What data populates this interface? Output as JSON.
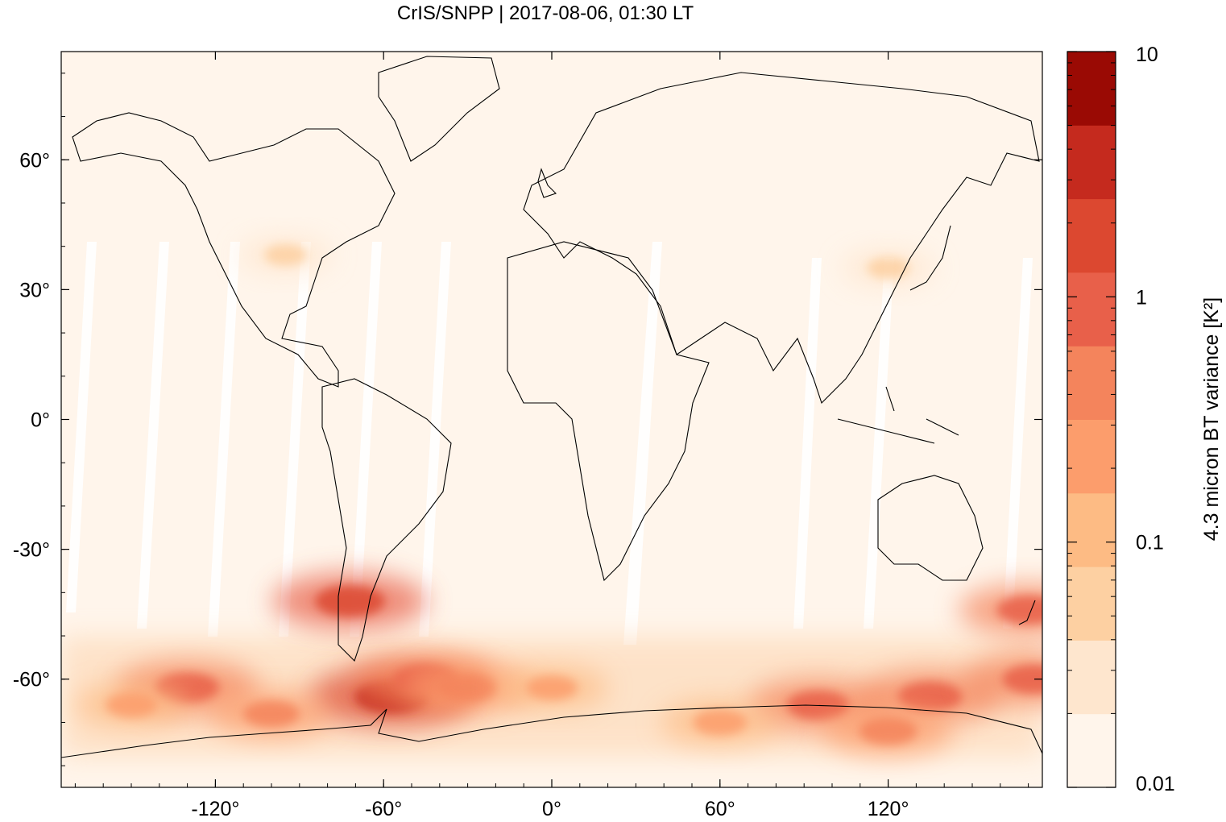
{
  "title": "CrIS/SNPP | 2017-08-06, 01:30 LT",
  "map": {
    "x_ticks": [
      {
        "value": -120,
        "label": "-120°"
      },
      {
        "value": -60,
        "label": "-60°"
      },
      {
        "value": 0,
        "label": "0°"
      },
      {
        "value": 60,
        "label": "60°"
      },
      {
        "value": 120,
        "label": "120°"
      }
    ],
    "y_ticks": [
      {
        "value": 60,
        "label": "60°"
      },
      {
        "value": 30,
        "label": "30°"
      },
      {
        "value": 0,
        "label": "0°"
      },
      {
        "value": -30,
        "label": "-30°"
      },
      {
        "value": -60,
        "label": "-60°"
      }
    ],
    "lon_range": [
      -175,
      175
    ],
    "lat_range": [
      -85,
      85
    ],
    "projection": "equirectangular",
    "background_color": "#fff5eb",
    "coastline_color": "#000000"
  },
  "colorbar": {
    "title": "4.3 micron BT variance [K²]",
    "scale": "log",
    "range": [
      0.01,
      10
    ],
    "tick_labels": [
      {
        "value": 10,
        "label": "10"
      },
      {
        "value": 1,
        "label": "1"
      },
      {
        "value": 0.1,
        "label": "0.1"
      },
      {
        "value": 0.01,
        "label": "0.01"
      }
    ],
    "colors": [
      "#fff5eb",
      "#fee6ce",
      "#fdd0a2",
      "#fdbb84",
      "#fc9d6c",
      "#f4845c",
      "#e8604a",
      "#dc4830",
      "#c52a1e",
      "#9a0a04"
    ]
  },
  "chart_data": {
    "type": "heatmap",
    "title": "CrIS/SNPP | 2017-08-06, 01:30 LT",
    "colorbar_label": "4.3 micron BT variance [K²]",
    "value_range": [
      0.01,
      10
    ],
    "log_scale": true,
    "hotspots": [
      {
        "lon": -57,
        "lat": -64,
        "value": 5.0
      },
      {
        "lon": -72,
        "lat": -42,
        "value": 2.5
      },
      {
        "lon": -130,
        "lat": -62,
        "value": 1.2
      },
      {
        "lon": -45,
        "lat": -60,
        "value": 1.2
      },
      {
        "lon": -30,
        "lat": -62,
        "value": 0.6
      },
      {
        "lon": 95,
        "lat": -66,
        "value": 1.0
      },
      {
        "lon": 135,
        "lat": -64,
        "value": 1.2
      },
      {
        "lon": 172,
        "lat": -60,
        "value": 1.0
      },
      {
        "lon": 170,
        "lat": -44,
        "value": 1.0
      },
      {
        "lon": 120,
        "lat": -72,
        "value": 0.5
      },
      {
        "lon": 60,
        "lat": -70,
        "value": 0.3
      },
      {
        "lon": 0,
        "lat": -62,
        "value": 0.2
      },
      {
        "lon": -100,
        "lat": -68,
        "value": 0.4
      },
      {
        "lon": -150,
        "lat": -66,
        "value": 0.2
      },
      {
        "lon": 120,
        "lat": 35,
        "value": 0.06
      },
      {
        "lon": -95,
        "lat": 38,
        "value": 0.06
      }
    ]
  }
}
